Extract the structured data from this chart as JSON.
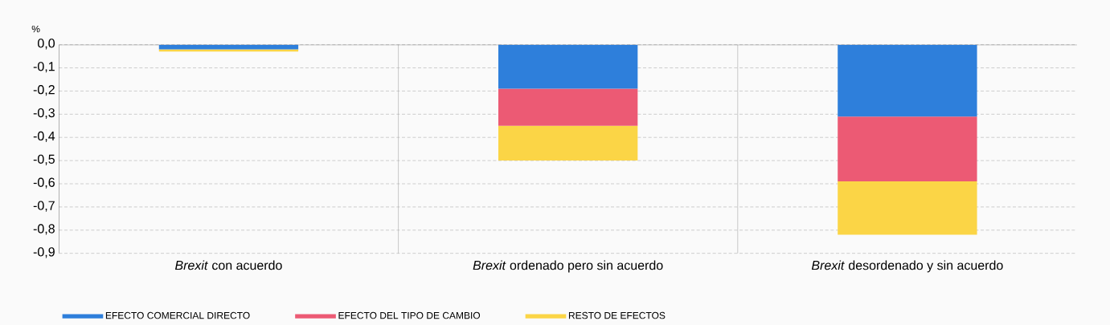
{
  "chart_data": {
    "type": "bar",
    "stacked": true,
    "ylabel": "%",
    "categories": [
      "*Brexit* con acuerdo",
      "*Brexit* ordenado pero sin acuerdo",
      "*Brexit* desordenado y sin acuerdo"
    ],
    "series": [
      {
        "name": "EFECTO COMERCIAL DIRECTO",
        "color": "#2e7fdb",
        "values": [
          -0.02,
          -0.19,
          -0.31
        ]
      },
      {
        "name": "EFECTO DEL TIPO DE CAMBIO",
        "color": "#ec5a74",
        "values": [
          0,
          -0.16,
          -0.28
        ]
      },
      {
        "name": "RESTO DE EFECTOS",
        "color": "#fbd546",
        "values": [
          -0.01,
          -0.15,
          -0.23
        ]
      }
    ],
    "ylim": [
      -0.9,
      0
    ],
    "yticks": [
      {
        "value": 0,
        "label": "0,0"
      },
      {
        "value": -0.1,
        "label": "-0,1"
      },
      {
        "value": -0.2,
        "label": "-0,2"
      },
      {
        "value": -0.3,
        "label": "-0,3"
      },
      {
        "value": -0.4,
        "label": "-0,4"
      },
      {
        "value": -0.5,
        "label": "-0,5"
      },
      {
        "value": -0.6,
        "label": "-0,6"
      },
      {
        "value": -0.7,
        "label": "-0,7"
      },
      {
        "value": -0.8,
        "label": "-0,8"
      },
      {
        "value": -0.9,
        "label": "-0,9"
      }
    ],
    "grid": "y",
    "legend": "bottom"
  }
}
